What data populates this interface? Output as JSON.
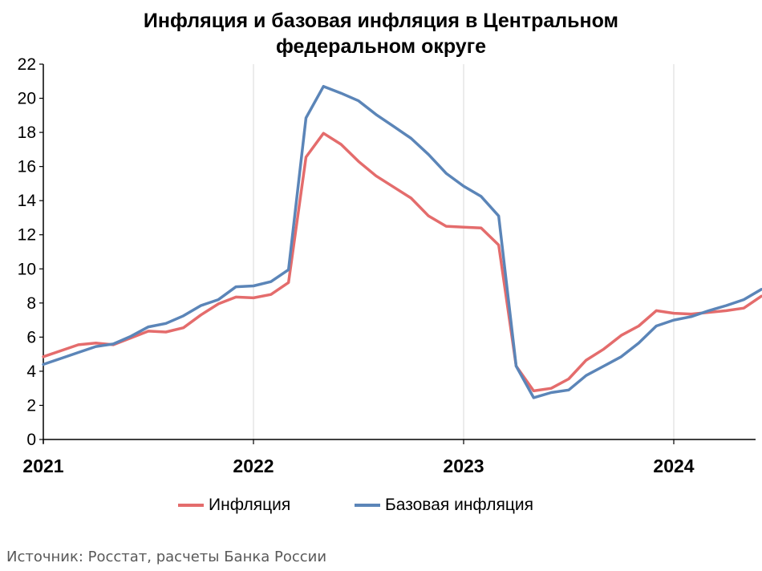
{
  "chart_data": {
    "type": "line",
    "title": "Инфляция и базовая инфляция в Центральном федеральном округе",
    "x_start": "2021-01",
    "x_labels": [
      "2021",
      "2022",
      "2023",
      "2024"
    ],
    "ylim": [
      0,
      22
    ],
    "yticks": [
      0,
      2,
      4,
      6,
      8,
      10,
      12,
      14,
      16,
      18,
      20,
      22
    ],
    "grid": "vertical",
    "legend_position": "bottom",
    "series": [
      {
        "name": "Инфляция",
        "color": "#e46c6c",
        "values": [
          4.85,
          5.2,
          5.55,
          5.65,
          5.55,
          5.95,
          6.35,
          6.3,
          6.55,
          7.3,
          7.95,
          8.35,
          8.3,
          8.5,
          9.2,
          16.55,
          17.95,
          17.3,
          16.3,
          15.45,
          14.8,
          14.15,
          13.1,
          12.5,
          12.45,
          12.4,
          11.4,
          4.3,
          2.85,
          3.0,
          3.55,
          4.65,
          5.3,
          6.1,
          6.65,
          7.55,
          7.4,
          7.35,
          7.45,
          7.55,
          7.7,
          8.4
        ]
      },
      {
        "name": "Базовая инфляция",
        "color": "#5b85b8",
        "values": [
          4.4,
          4.75,
          5.1,
          5.45,
          5.6,
          6.05,
          6.6,
          6.8,
          7.25,
          7.85,
          8.2,
          8.95,
          9.0,
          9.25,
          9.95,
          18.85,
          20.7,
          20.3,
          19.85,
          19.05,
          18.35,
          17.65,
          16.7,
          15.6,
          14.85,
          14.25,
          13.1,
          4.3,
          2.45,
          2.75,
          2.9,
          3.75,
          4.3,
          4.85,
          5.65,
          6.65,
          7.0,
          7.2,
          7.55,
          7.85,
          8.2,
          8.8
        ]
      }
    ]
  },
  "source": "Источник: Росстат, расчеты Банка России"
}
